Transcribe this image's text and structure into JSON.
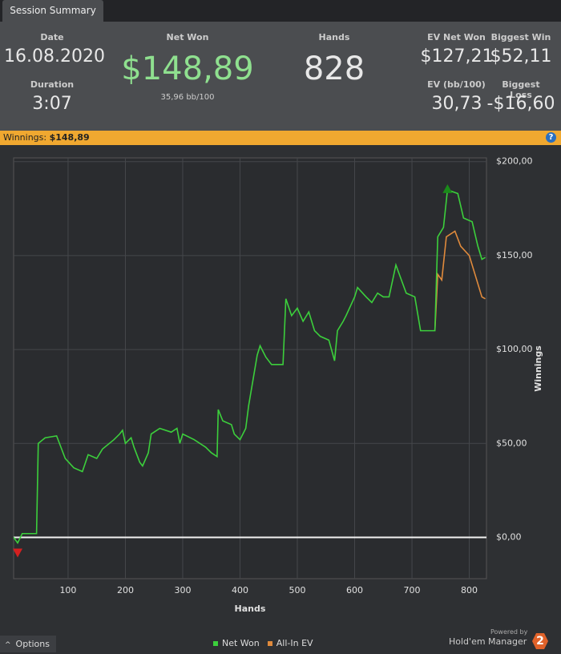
{
  "tab": "Session Summary",
  "stats": {
    "date": {
      "label": "Date",
      "value": "16.08.2020"
    },
    "duration": {
      "label": "Duration",
      "value": "3:07"
    },
    "net_won": {
      "label": "Net Won",
      "value": "$148,89",
      "sub": "35,96 bb/100"
    },
    "hands": {
      "label": "Hands",
      "value": "828"
    },
    "ev_net_won": {
      "label": "EV Net Won",
      "value": "$127,21"
    },
    "biggest_win": {
      "label": "Biggest Win",
      "value": "$52,11"
    },
    "ev_bb": {
      "label": "EV (bb/100)",
      "value": "30,73"
    },
    "biggest_loss": {
      "label": "Biggest Loss",
      "value": "-$16,60"
    }
  },
  "banner": {
    "label": "Winnings:",
    "value": "$148,89"
  },
  "chart_data": {
    "type": "line",
    "xlabel": "Hands",
    "ylabel": "Winnings",
    "xlim": [
      5,
      830
    ],
    "xticks": [
      100,
      200,
      300,
      400,
      500,
      600,
      700,
      800
    ],
    "ylim": [
      -22,
      202
    ],
    "yticks": [
      {
        "value": 0,
        "label": "$0,00"
      },
      {
        "value": 50,
        "label": "$50,00"
      },
      {
        "value": 100,
        "label": "$100,00"
      },
      {
        "value": 150,
        "label": "$150,00"
      },
      {
        "value": 200,
        "label": "$200,00"
      }
    ],
    "grid": true,
    "series": [
      {
        "name": "Net Won",
        "color": "#3ccf3c",
        "x": [
          5,
          12,
          20,
          45,
          48,
          60,
          80,
          95,
          110,
          125,
          135,
          150,
          160,
          180,
          190,
          195,
          200,
          210,
          215,
          225,
          230,
          240,
          245,
          260,
          280,
          290,
          295,
          300,
          320,
          340,
          350,
          360,
          362,
          370,
          385,
          390,
          400,
          410,
          415,
          425,
          430,
          435,
          445,
          455,
          475,
          480,
          490,
          500,
          510,
          520,
          530,
          540,
          555,
          565,
          570,
          580,
          585,
          600,
          605,
          620,
          630,
          640,
          650,
          660,
          672,
          690,
          705,
          715,
          740,
          745,
          755,
          762,
          780,
          790,
          805,
          815,
          822,
          828
        ],
        "values": [
          0,
          -3,
          2,
          2,
          50,
          53,
          54,
          42,
          37,
          35,
          44,
          42,
          47,
          52,
          55,
          57,
          50,
          53,
          48,
          40,
          38,
          45,
          55,
          58,
          56,
          58,
          50,
          55,
          52,
          48,
          45,
          43,
          68,
          62,
          60,
          55,
          52,
          58,
          70,
          88,
          97,
          102,
          96,
          92,
          92,
          127,
          118,
          122,
          115,
          120,
          110,
          107,
          105,
          94,
          110,
          115,
          118,
          128,
          133,
          128,
          125,
          130,
          128,
          128,
          145,
          130,
          128,
          110,
          110,
          160,
          165,
          185,
          183,
          170,
          168,
          155,
          148,
          149
        ]
      },
      {
        "name": "All-In EV",
        "color": "#e08a3c",
        "x": [
          740,
          745,
          752,
          760,
          775,
          785,
          800,
          810,
          822,
          828
        ],
        "values": [
          110,
          140,
          137,
          160,
          163,
          155,
          150,
          140,
          128,
          127
        ]
      }
    ]
  },
  "footer": {
    "options": "Options",
    "powered": "Powered by",
    "brand": "Hold'em Manager",
    "version": "2"
  }
}
